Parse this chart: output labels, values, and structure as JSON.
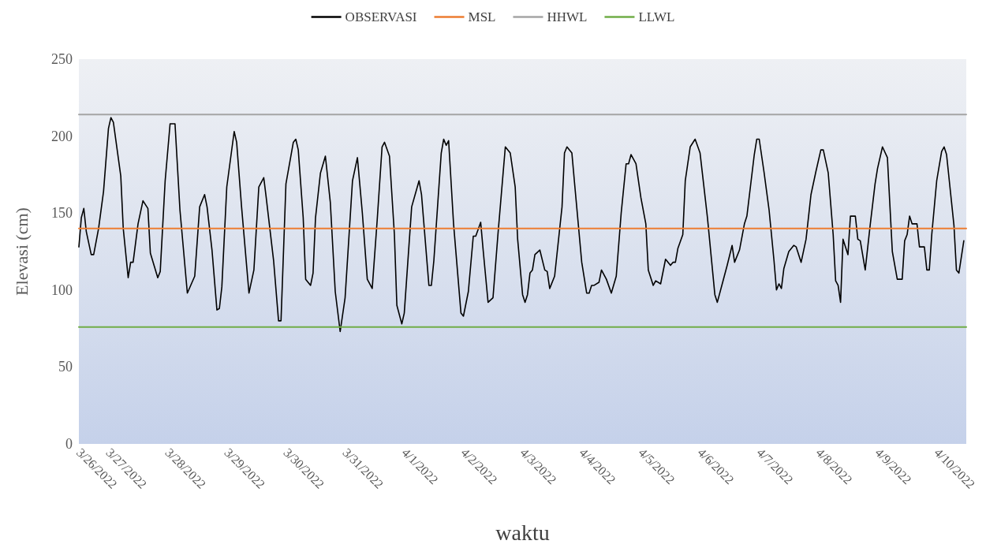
{
  "chart_data": {
    "type": "line",
    "xlabel": "waktu",
    "ylabel": "Elevasi (cm)",
    "xlim": [
      "2022-03-26T12:00",
      "2022-04-10T12:00"
    ],
    "ylim": [
      0,
      250
    ],
    "yticks": [
      0,
      50,
      100,
      150,
      200,
      250
    ],
    "xticks": [
      {
        "value": "2022-03-26T12:00",
        "label": "3/26/2022"
      },
      {
        "value": "2022-03-27",
        "label": "3/27/2022"
      },
      {
        "value": "2022-03-28",
        "label": "3/28/2022"
      },
      {
        "value": "2022-03-29",
        "label": "3/29/2022"
      },
      {
        "value": "2022-03-30",
        "label": "3/30/2022"
      },
      {
        "value": "2022-03-31",
        "label": "3/31/2022"
      },
      {
        "value": "2022-04-01",
        "label": "4/1/2022"
      },
      {
        "value": "2022-04-02",
        "label": "4/2/2022"
      },
      {
        "value": "2022-04-03",
        "label": "4/3/2022"
      },
      {
        "value": "2022-04-04",
        "label": "4/4/2022"
      },
      {
        "value": "2022-04-05",
        "label": "4/5/2022"
      },
      {
        "value": "2022-04-06",
        "label": "4/6/2022"
      },
      {
        "value": "2022-04-07",
        "label": "4/7/2022"
      },
      {
        "value": "2022-04-08",
        "label": "4/8/2022"
      },
      {
        "value": "2022-04-09",
        "label": "4/9/2022"
      },
      {
        "value": "2022-04-10",
        "label": "4/10/2022"
      }
    ],
    "legend": "top",
    "marker": "none",
    "grid": false,
    "series": [
      {
        "name": "OBSERVASI",
        "color": "#000000",
        "x": [
          "2022-03-26T12:00",
          "2022-03-26T13:00",
          "2022-03-26T14:00",
          "2022-03-26T15:00",
          "2022-03-26T17:00",
          "2022-03-26T18:00",
          "2022-03-26T20:00",
          "2022-03-26T22:00",
          "2022-03-27T00:00",
          "2022-03-27T01:00",
          "2022-03-27T02:00",
          "2022-03-27T05:00",
          "2022-03-27T06:00",
          "2022-03-27T08:00",
          "2022-03-27T09:00",
          "2022-03-27T10:00",
          "2022-03-27T12:00",
          "2022-03-27T14:00",
          "2022-03-27T16:00",
          "2022-03-27T17:00",
          "2022-03-27T20:00",
          "2022-03-27T21:00",
          "2022-03-27T23:00",
          "2022-03-28T01:00",
          "2022-03-28T03:00",
          "2022-03-28T05:00",
          "2022-03-28T08:00",
          "2022-03-28T11:00",
          "2022-03-28T13:00",
          "2022-03-28T15:00",
          "2022-03-28T16:00",
          "2022-03-28T18:00",
          "2022-03-28T20:00",
          "2022-03-28T21:00",
          "2022-03-28T22:00",
          "2022-03-29T00:00",
          "2022-03-29T03:00",
          "2022-03-29T04:00",
          "2022-03-29T06:00",
          "2022-03-29T09:00",
          "2022-03-29T11:00",
          "2022-03-29T13:00",
          "2022-03-29T15:00",
          "2022-03-29T16:00",
          "2022-03-29T19:00",
          "2022-03-29T21:00",
          "2022-03-29T22:00",
          "2022-03-30T00:00",
          "2022-03-30T03:00",
          "2022-03-30T04:00",
          "2022-03-30T05:00",
          "2022-03-30T07:00",
          "2022-03-30T08:00",
          "2022-03-30T10:00",
          "2022-03-30T11:00",
          "2022-03-30T12:00",
          "2022-03-30T14:00",
          "2022-03-30T16:00",
          "2022-03-30T18:00",
          "2022-03-30T20:00",
          "2022-03-30T22:00",
          "2022-03-31T00:00",
          "2022-03-31T03:00",
          "2022-03-31T05:00",
          "2022-03-31T07:00",
          "2022-03-31T09:00",
          "2022-03-31T11:00",
          "2022-03-31T13:00",
          "2022-03-31T15:00",
          "2022-03-31T16:00",
          "2022-03-31T18:00",
          "2022-03-31T20:00",
          "2022-03-31T21:00",
          "2022-03-31T23:00",
          "2022-04-01T00:00",
          "2022-04-01T03:00",
          "2022-04-01T06:00",
          "2022-04-01T07:00",
          "2022-04-01T10:00",
          "2022-04-01T11:00",
          "2022-04-01T12:00",
          "2022-04-01T15:00",
          "2022-04-01T16:00",
          "2022-04-01T17:00",
          "2022-04-01T18:00",
          "2022-04-01T20:00",
          "2022-04-01T23:00",
          "2022-04-02T00:00",
          "2022-04-02T02:00",
          "2022-04-02T04:00",
          "2022-04-02T05:00",
          "2022-04-02T07:00",
          "2022-04-02T08:00",
          "2022-04-02T10:00",
          "2022-04-02T12:00",
          "2022-04-02T14:00",
          "2022-04-02T17:00",
          "2022-04-02T19:00",
          "2022-04-02T21:00",
          "2022-04-02T22:00",
          "2022-04-03T00:00",
          "2022-04-03T01:00",
          "2022-04-03T02:00",
          "2022-04-03T03:00",
          "2022-04-03T04:00",
          "2022-04-03T05:00",
          "2022-04-03T07:00",
          "2022-04-03T09:00",
          "2022-04-03T10:00",
          "2022-04-03T11:00",
          "2022-04-03T13:00",
          "2022-04-03T16:00",
          "2022-04-03T17:00",
          "2022-04-03T18:00",
          "2022-04-03T20:00",
          "2022-04-03T21:00",
          "2022-04-04T00:00",
          "2022-04-04T02:00",
          "2022-04-04T03:00",
          "2022-04-04T04:00",
          "2022-04-04T05:00",
          "2022-04-04T07:00",
          "2022-04-04T08:00",
          "2022-04-04T10:00",
          "2022-04-04T12:00",
          "2022-04-04T14:00",
          "2022-04-04T16:00",
          "2022-04-04T18:00",
          "2022-04-04T19:00",
          "2022-04-04T20:00",
          "2022-04-04T22:00",
          "2022-04-05T00:00",
          "2022-04-05T02:00",
          "2022-04-05T03:00",
          "2022-04-05T05:00",
          "2022-04-05T06:00",
          "2022-04-05T08:00",
          "2022-04-05T10:00",
          "2022-04-05T12:00",
          "2022-04-05T13:00",
          "2022-04-05T14:00",
          "2022-04-05T15:00",
          "2022-04-05T17:00",
          "2022-04-05T18:00",
          "2022-04-05T20:00",
          "2022-04-05T22:00",
          "2022-04-06T00:00",
          "2022-04-06T03:00",
          "2022-04-06T06:00",
          "2022-04-06T07:00",
          "2022-04-06T09:00",
          "2022-04-06T11:00",
          "2022-04-06T13:00",
          "2022-04-06T14:00",
          "2022-04-06T16:00",
          "2022-04-06T18:00",
          "2022-04-06T19:00",
          "2022-04-06T22:00",
          "2022-04-06T23:00",
          "2022-04-07T00:00",
          "2022-04-07T02:00",
          "2022-04-07T04:00",
          "2022-04-07T06:00",
          "2022-04-07T07:00",
          "2022-04-07T08:00",
          "2022-04-07T09:00",
          "2022-04-07T10:00",
          "2022-04-07T12:00",
          "2022-04-07T14:00",
          "2022-04-07T15:00",
          "2022-04-07T17:00",
          "2022-04-07T19:00",
          "2022-04-07T21:00",
          "2022-04-07T23:00",
          "2022-04-08T01:00",
          "2022-04-08T02:00",
          "2022-04-08T04:00",
          "2022-04-08T06:00",
          "2022-04-08T07:00",
          "2022-04-08T08:00",
          "2022-04-08T09:00",
          "2022-04-08T10:00",
          "2022-04-08T12:00",
          "2022-04-08T13:00",
          "2022-04-08T15:00",
          "2022-04-08T16:00",
          "2022-04-08T17:00",
          "2022-04-08T19:00",
          "2022-04-08T21:00",
          "2022-04-08T23:00",
          "2022-04-09T00:00",
          "2022-04-09T02:00",
          "2022-04-09T04:00",
          "2022-04-09T06:00",
          "2022-04-09T08:00",
          "2022-04-09T10:00",
          "2022-04-09T11:00",
          "2022-04-09T12:00",
          "2022-04-09T13:00",
          "2022-04-09T14:00",
          "2022-04-09T16:00",
          "2022-04-09T17:00",
          "2022-04-09T19:00",
          "2022-04-09T20:00",
          "2022-04-09T21:00",
          "2022-04-09T22:00",
          "2022-04-10T00:00",
          "2022-04-10T02:00",
          "2022-04-10T03:00",
          "2022-04-10T04:00",
          "2022-04-10T07:00",
          "2022-04-10T08:00",
          "2022-04-10T09:00",
          "2022-04-10T11:00"
        ],
        "values": [
          128,
          147,
          153,
          138,
          123,
          123,
          140,
          164,
          205,
          212,
          209,
          174,
          140,
          108,
          118,
          118,
          143,
          158,
          153,
          124,
          108,
          112,
          171,
          208,
          208,
          152,
          98,
          109,
          154,
          162,
          154,
          126,
          87,
          88,
          102,
          167,
          203,
          196,
          154,
          98,
          113,
          167,
          173,
          160,
          119,
          80,
          80,
          169,
          196,
          198,
          191,
          147,
          107,
          103,
          111,
          147,
          176,
          187,
          157,
          99,
          73,
          95,
          171,
          186,
          150,
          107,
          101,
          145,
          193,
          196,
          187,
          136,
          90,
          78,
          85,
          154,
          171,
          162,
          103,
          103,
          119,
          189,
          198,
          194,
          197,
          143,
          85,
          83,
          99,
          135,
          135,
          144,
          126,
          92,
          95,
          136,
          193,
          189,
          167,
          133,
          97,
          92,
          97,
          111,
          113,
          123,
          126,
          113,
          112,
          101,
          109,
          154,
          189,
          193,
          189,
          171,
          118,
          98,
          98,
          103,
          103,
          105,
          113,
          107,
          98,
          109,
          150,
          182,
          182,
          188,
          182,
          160,
          143,
          113,
          103,
          106,
          104,
          120,
          116,
          118,
          118,
          127,
          136,
          171,
          193,
          198,
          189,
          147,
          97,
          92,
          104,
          116,
          129,
          118,
          126,
          143,
          148,
          188,
          198,
          198,
          176,
          152,
          119,
          100,
          104,
          101,
          114,
          125,
          129,
          128,
          118,
          133,
          162,
          177,
          191,
          191,
          176,
          136,
          106,
          103,
          92,
          133,
          123,
          148,
          148,
          133,
          132,
          113,
          142,
          169,
          179,
          193,
          186,
          125,
          107,
          107,
          132,
          136,
          148,
          143,
          143,
          128,
          128,
          113,
          113,
          136,
          171,
          190,
          193,
          188,
          142,
          113,
          111,
          132
        ]
      },
      {
        "name": "MSL",
        "color": "#ed7d31",
        "x": [
          "2022-03-26T12:00",
          "2022-04-10T12:00"
        ],
        "values": [
          140,
          140
        ]
      },
      {
        "name": "HHWL",
        "color": "#a5a5a5",
        "x": [
          "2022-03-26T12:00",
          "2022-04-10T12:00"
        ],
        "values": [
          214,
          214
        ]
      },
      {
        "name": "LLWL",
        "color": "#70ad47",
        "x": [
          "2022-03-26T12:00",
          "2022-04-10T12:00"
        ],
        "values": [
          76,
          76
        ]
      }
    ]
  }
}
